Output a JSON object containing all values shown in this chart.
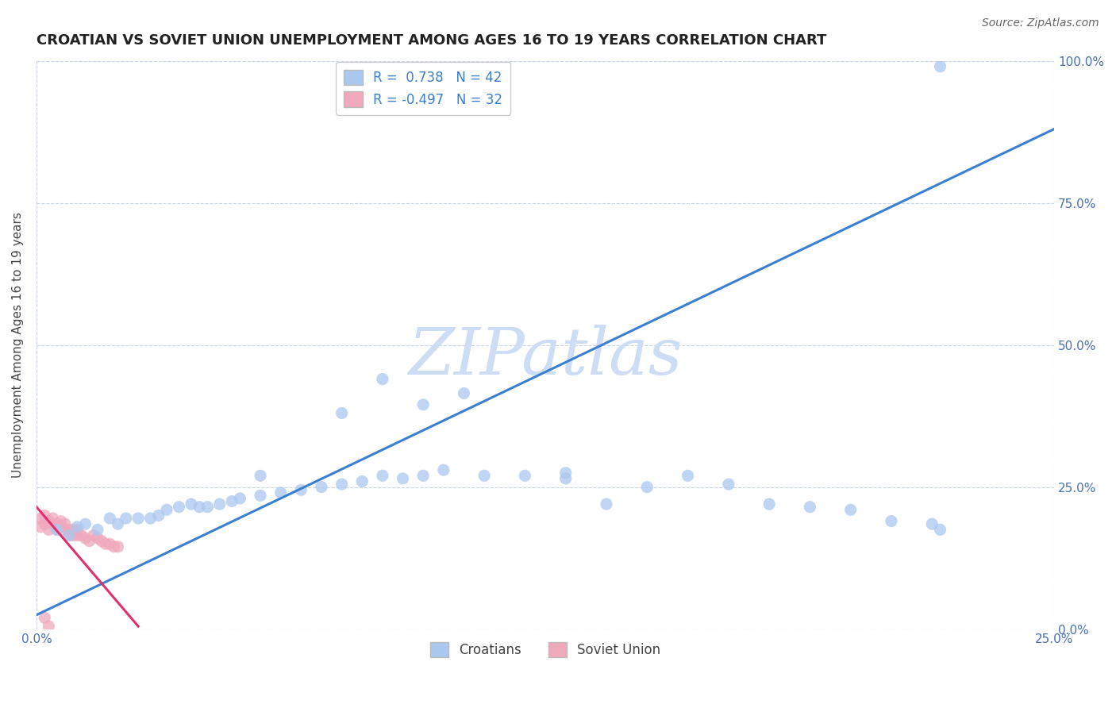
{
  "title": "CROATIAN VS SOVIET UNION UNEMPLOYMENT AMONG AGES 16 TO 19 YEARS CORRELATION CHART",
  "source": "Source: ZipAtlas.com",
  "ylabel": "Unemployment Among Ages 16 to 19 years",
  "xlim": [
    0.0,
    0.25
  ],
  "ylim": [
    0.0,
    1.0
  ],
  "xticks": [
    0.0,
    0.25
  ],
  "yticks": [
    0.0,
    0.25,
    0.5,
    0.75,
    1.0
  ],
  "ytick_labels": [
    "0.0%",
    "25.0%",
    "50.0%",
    "75.0%",
    "100.0%"
  ],
  "xtick_labels": [
    "0.0%",
    "25.0%"
  ],
  "croatian_R": 0.738,
  "croatian_N": 42,
  "soviet_R": -0.497,
  "soviet_N": 32,
  "croatian_color": "#aac8f0",
  "soviet_color": "#f0a8bc",
  "croatian_line_color": "#3a7fd0",
  "soviet_line_color": "#e03070",
  "watermark": "ZIPatlas",
  "watermark_color": "#ccddf5",
  "background_color": "#ffffff",
  "grid_color": "#c8d4e8",
  "title_fontsize": 13,
  "legend_text_color": "#333333",
  "r_value_color": "#3a7fd0",
  "tick_color": "#4a70b0",
  "croatian_scatter_x": [
    0.005,
    0.008,
    0.01,
    0.012,
    0.015,
    0.018,
    0.02,
    0.022,
    0.025,
    0.028,
    0.03,
    0.032,
    0.035,
    0.038,
    0.04,
    0.042,
    0.045,
    0.048,
    0.05,
    0.055,
    0.06,
    0.065,
    0.07,
    0.075,
    0.08,
    0.085,
    0.09,
    0.095,
    0.1,
    0.11,
    0.12,
    0.13,
    0.14,
    0.15,
    0.16,
    0.17,
    0.18,
    0.19,
    0.2,
    0.21,
    0.22,
    0.222
  ],
  "croatian_scatter_y": [
    0.175,
    0.165,
    0.18,
    0.185,
    0.175,
    0.195,
    0.185,
    0.195,
    0.195,
    0.195,
    0.2,
    0.21,
    0.215,
    0.22,
    0.215,
    0.215,
    0.22,
    0.225,
    0.23,
    0.235,
    0.24,
    0.245,
    0.25,
    0.255,
    0.26,
    0.27,
    0.265,
    0.27,
    0.28,
    0.27,
    0.27,
    0.275,
    0.22,
    0.25,
    0.27,
    0.255,
    0.22,
    0.215,
    0.21,
    0.19,
    0.185,
    0.175
  ],
  "croatian_extra_x": [
    0.055,
    0.075,
    0.085,
    0.095,
    0.105,
    0.13,
    0.222
  ],
  "croatian_extra_y": [
    0.27,
    0.38,
    0.44,
    0.395,
    0.415,
    0.265,
    0.99
  ],
  "soviet_scatter_x": [
    0.001,
    0.001,
    0.002,
    0.002,
    0.003,
    0.003,
    0.004,
    0.004,
    0.005,
    0.005,
    0.006,
    0.006,
    0.007,
    0.007,
    0.008,
    0.008,
    0.009,
    0.009,
    0.01,
    0.01,
    0.011,
    0.012,
    0.013,
    0.014,
    0.015,
    0.016,
    0.017,
    0.018,
    0.019,
    0.02,
    0.002,
    0.003
  ],
  "soviet_scatter_y": [
    0.18,
    0.195,
    0.185,
    0.2,
    0.175,
    0.19,
    0.185,
    0.195,
    0.175,
    0.185,
    0.18,
    0.19,
    0.175,
    0.185,
    0.165,
    0.175,
    0.165,
    0.175,
    0.165,
    0.175,
    0.165,
    0.16,
    0.155,
    0.165,
    0.16,
    0.155,
    0.15,
    0.15,
    0.145,
    0.145,
    0.02,
    0.005
  ],
  "croatian_line_x0": 0.0,
  "croatian_line_x1": 0.25,
  "croatian_line_y0": 0.025,
  "croatian_line_y1": 0.88,
  "soviet_line_x0": 0.0,
  "soviet_line_x1": 0.025,
  "soviet_line_y0": 0.215,
  "soviet_line_y1": 0.005
}
